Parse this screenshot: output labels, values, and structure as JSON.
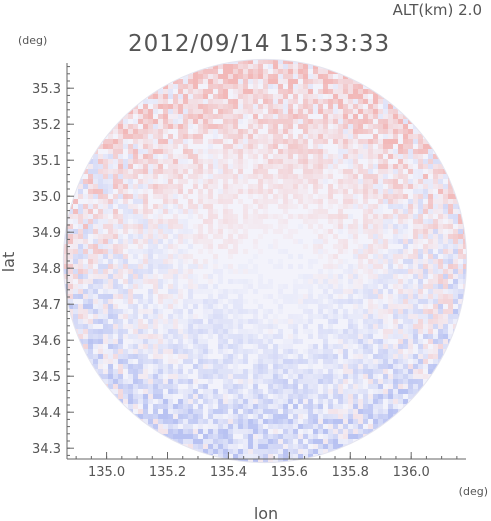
{
  "chart_data": {
    "type": "heatmap",
    "title": "2012/09/14 15:33:33",
    "altitude_label": "ALT(km) 2.0",
    "xlabel": "lon",
    "ylabel": "lat",
    "x_unit": "(deg)",
    "y_unit": "(deg)",
    "xlim": [
      134.87,
      136.18
    ],
    "ylim": [
      34.27,
      35.37
    ],
    "x_ticks": [
      135.0,
      135.2,
      135.4,
      135.6,
      135.8,
      136.0
    ],
    "y_ticks": [
      34.3,
      34.4,
      34.5,
      34.6,
      34.7,
      34.8,
      34.9,
      35.0,
      35.1,
      35.2,
      35.3
    ],
    "x_tick_labels": [
      "135.0",
      "135.2",
      "135.4",
      "135.6",
      "135.8",
      "136.0"
    ],
    "y_tick_labels": [
      "34.3",
      "34.4",
      "34.5",
      "34.6",
      "34.7",
      "34.8",
      "34.9",
      "35.0",
      "35.1",
      "35.2",
      "35.3"
    ],
    "radar_center": [
      135.52,
      34.82
    ],
    "radar_radius_deg": 0.56,
    "colors": {
      "positive": "#f2b8b8",
      "negative": "#b8c2f2",
      "neutral": "#f3f3fb",
      "axis": "#666666",
      "text": "#555555"
    }
  }
}
